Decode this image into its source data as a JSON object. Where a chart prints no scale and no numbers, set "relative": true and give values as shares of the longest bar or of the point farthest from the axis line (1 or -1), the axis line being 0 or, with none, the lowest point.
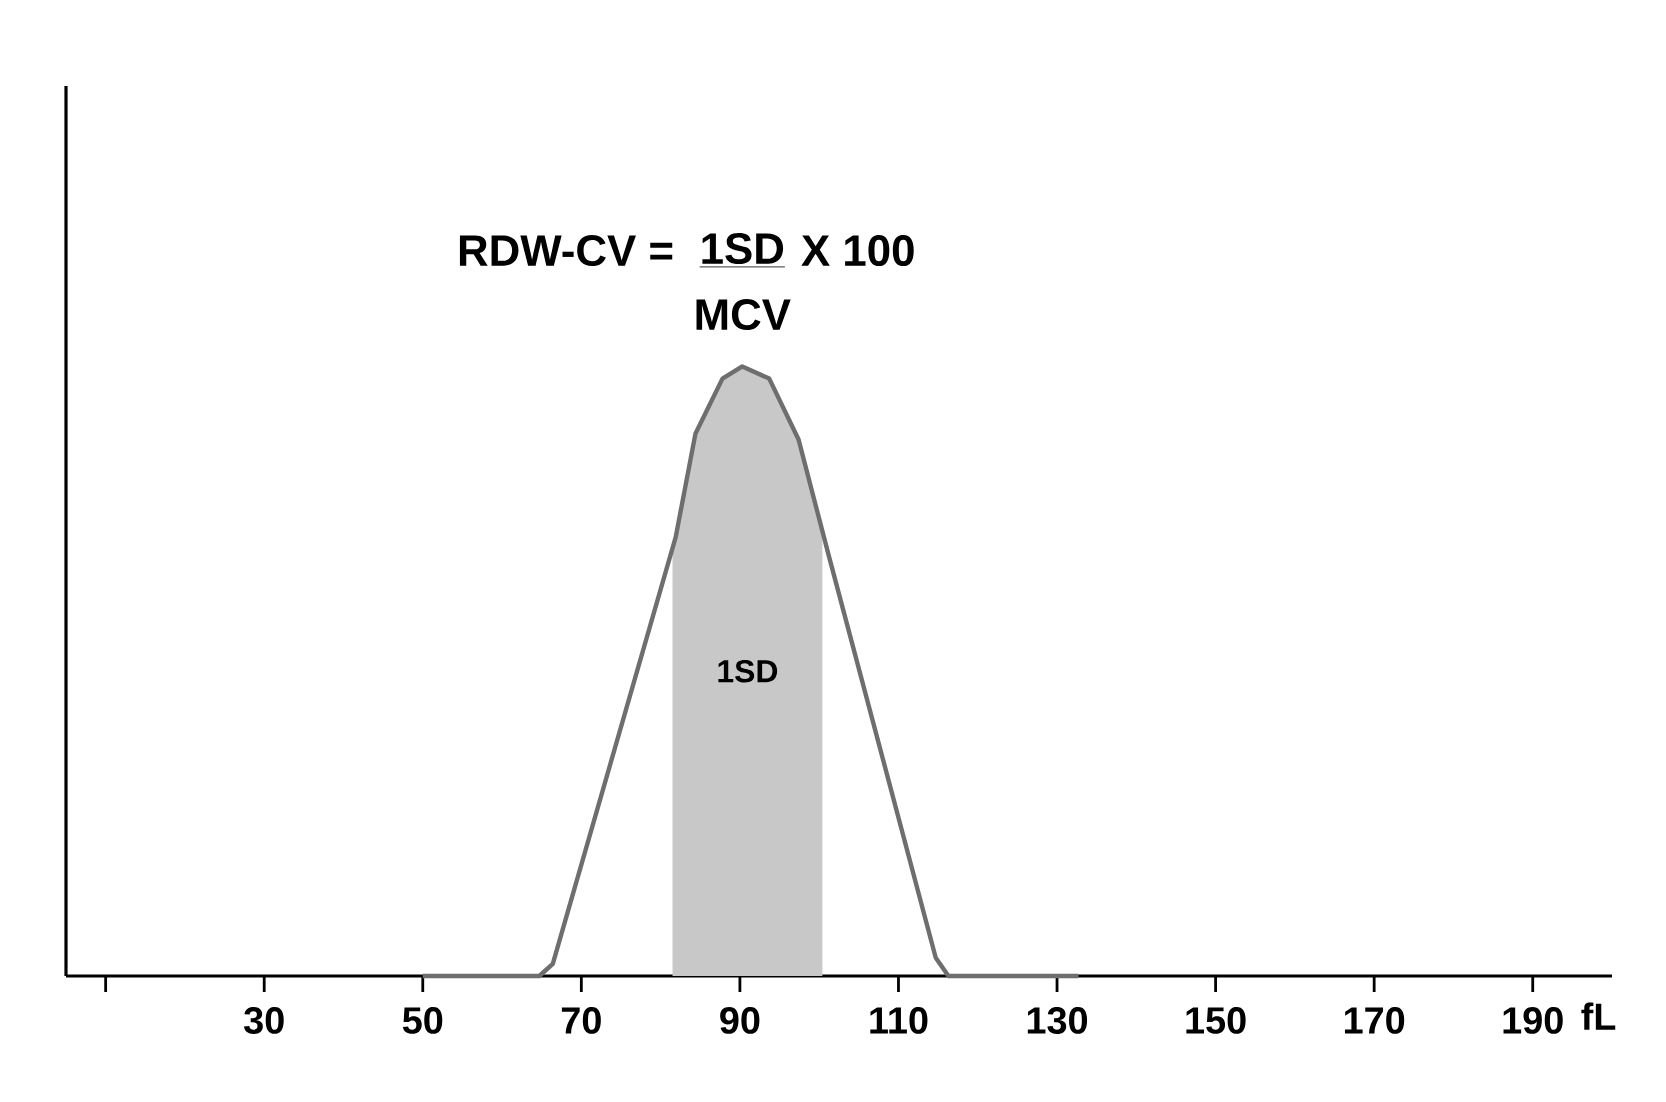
{
  "chart_data": {
    "type": "line",
    "relative": true,
    "xlabel": "fL",
    "x": [
      50,
      64.7,
      66.4,
      81.9,
      84.4,
      87.8,
      90.3,
      93.7,
      97.4,
      101.2,
      114.7,
      116.3,
      132.7
    ],
    "series": [
      {
        "color": "#6e6e6e",
        "values": [
          0,
          0,
          0.02,
          0.72,
          0.89,
          0.98,
          1,
          0.98,
          0.88,
          0.69,
          0.03,
          0,
          0
        ]
      }
    ],
    "xlim": [
      5,
      200
    ],
    "xticks": [
      {
        "value": 10,
        "label": null
      },
      30,
      50,
      70,
      90,
      110,
      130,
      150,
      170,
      190
    ],
    "bands": [
      {
        "axis": "x",
        "from": 81.5,
        "to": 100.4,
        "label": "1SD",
        "color": "#c8c8c8"
      }
    ],
    "annotations": [
      "RDW-CV =",
      "1SD",
      "X 100",
      "MCV"
    ],
    "line_style": "solid"
  }
}
